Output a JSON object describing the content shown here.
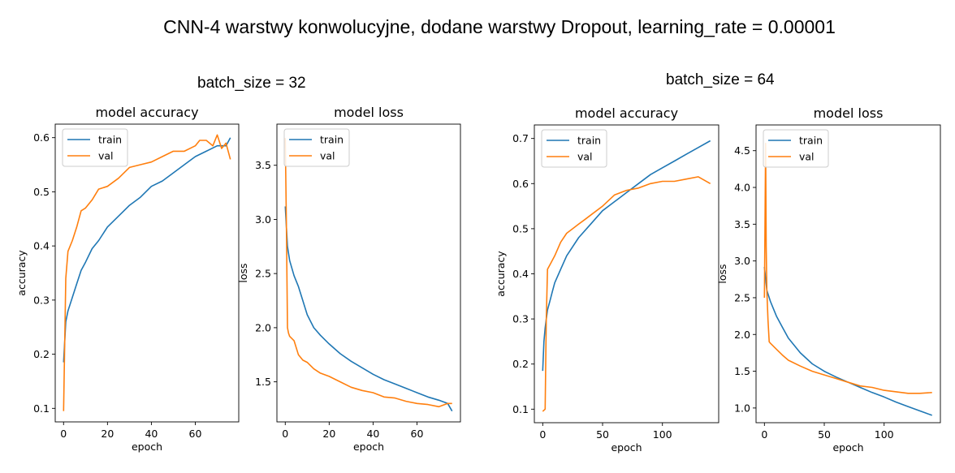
{
  "page_title": "CNN-4 warstwy konwolucyjne, dodane warstwy Dropout, learning_rate = 0.00001",
  "groups": [
    {
      "label": "batch_size = 32"
    },
    {
      "label": "batch_size = 64"
    }
  ],
  "colors": {
    "train": "#1f77b4",
    "val": "#ff7f0e"
  },
  "chart_data": [
    {
      "type": "line",
      "title": "model accuracy",
      "xlabel": "epoch",
      "ylabel": "accuracy",
      "xlim": [
        -3.8,
        79.8
      ],
      "ylim": [
        0.075,
        0.625
      ],
      "xticks": [
        0,
        20,
        40,
        60
      ],
      "yticks": [
        0.1,
        0.2,
        0.3,
        0.4,
        0.5,
        0.6
      ],
      "legend": "upper left",
      "series": [
        {
          "name": "train",
          "x": [
            0,
            1,
            2,
            4,
            6,
            8,
            10,
            13,
            16,
            20,
            25,
            30,
            35,
            40,
            45,
            50,
            55,
            60,
            65,
            70,
            74,
            76
          ],
          "values": [
            0.185,
            0.26,
            0.28,
            0.305,
            0.33,
            0.355,
            0.37,
            0.395,
            0.41,
            0.435,
            0.455,
            0.475,
            0.49,
            0.51,
            0.52,
            0.535,
            0.55,
            0.565,
            0.575,
            0.585,
            0.585,
            0.6
          ]
        },
        {
          "name": "val",
          "x": [
            0,
            1,
            2,
            4,
            6,
            8,
            10,
            13,
            16,
            20,
            25,
            30,
            35,
            40,
            45,
            50,
            55,
            60,
            62,
            65,
            68,
            70,
            72,
            74,
            76
          ],
          "values": [
            0.095,
            0.34,
            0.39,
            0.41,
            0.435,
            0.465,
            0.47,
            0.485,
            0.505,
            0.51,
            0.525,
            0.545,
            0.55,
            0.555,
            0.565,
            0.575,
            0.575,
            0.585,
            0.595,
            0.595,
            0.585,
            0.605,
            0.58,
            0.59,
            0.56
          ]
        }
      ]
    },
    {
      "type": "line",
      "title": "model loss",
      "xlabel": "epoch",
      "ylabel": "loss",
      "xlim": [
        -3.8,
        79.8
      ],
      "ylim": [
        1.13,
        3.88
      ],
      "xticks": [
        0,
        20,
        40,
        60
      ],
      "yticks": [
        1.5,
        2.0,
        2.5,
        3.0,
        3.5
      ],
      "legend": "upper left",
      "series": [
        {
          "name": "train",
          "x": [
            0,
            1,
            2,
            4,
            6,
            8,
            10,
            13,
            16,
            20,
            25,
            30,
            35,
            40,
            45,
            50,
            55,
            60,
            65,
            70,
            74,
            76
          ],
          "values": [
            3.12,
            2.75,
            2.62,
            2.48,
            2.38,
            2.25,
            2.12,
            2.0,
            1.93,
            1.85,
            1.76,
            1.69,
            1.63,
            1.57,
            1.52,
            1.48,
            1.44,
            1.4,
            1.36,
            1.33,
            1.3,
            1.23
          ]
        },
        {
          "name": "val",
          "x": [
            0,
            0.5,
            1,
            1.5,
            2,
            4,
            6,
            8,
            10,
            13,
            16,
            20,
            25,
            30,
            35,
            40,
            45,
            50,
            55,
            60,
            65,
            70,
            74,
            76
          ],
          "values": [
            3.75,
            3.0,
            2.0,
            1.95,
            1.92,
            1.88,
            1.75,
            1.7,
            1.68,
            1.62,
            1.58,
            1.55,
            1.5,
            1.45,
            1.42,
            1.4,
            1.36,
            1.35,
            1.32,
            1.3,
            1.29,
            1.27,
            1.3,
            1.3
          ]
        }
      ]
    },
    {
      "type": "line",
      "title": "model accuracy",
      "xlabel": "epoch",
      "ylabel": "accuracy",
      "xlim": [
        -7,
        147
      ],
      "ylim": [
        0.07,
        0.73
      ],
      "xticks": [
        0,
        50,
        100
      ],
      "yticks": [
        0.1,
        0.2,
        0.3,
        0.4,
        0.5,
        0.6,
        0.7
      ],
      "legend": "upper left",
      "series": [
        {
          "name": "train",
          "x": [
            0,
            1,
            2,
            4,
            6,
            8,
            10,
            15,
            20,
            25,
            30,
            40,
            50,
            60,
            70,
            80,
            90,
            100,
            110,
            120,
            130,
            140
          ],
          "values": [
            0.185,
            0.25,
            0.28,
            0.32,
            0.34,
            0.36,
            0.38,
            0.41,
            0.44,
            0.46,
            0.48,
            0.51,
            0.54,
            0.56,
            0.58,
            0.6,
            0.62,
            0.635,
            0.65,
            0.665,
            0.68,
            0.695
          ]
        },
        {
          "name": "val",
          "x": [
            0,
            2,
            3,
            4,
            6,
            10,
            15,
            20,
            25,
            30,
            35,
            40,
            50,
            60,
            70,
            80,
            90,
            100,
            110,
            120,
            130,
            140
          ],
          "values": [
            0.095,
            0.1,
            0.3,
            0.41,
            0.42,
            0.44,
            0.47,
            0.49,
            0.5,
            0.51,
            0.52,
            0.53,
            0.55,
            0.575,
            0.585,
            0.59,
            0.6,
            0.605,
            0.605,
            0.61,
            0.615,
            0.6
          ]
        }
      ]
    },
    {
      "type": "line",
      "title": "model loss",
      "xlabel": "epoch",
      "ylabel": "loss",
      "xlim": [
        -7,
        147
      ],
      "ylim": [
        0.8,
        4.85
      ],
      "xticks": [
        0,
        50,
        100
      ],
      "yticks": [
        1.0,
        1.5,
        2.0,
        2.5,
        3.0,
        3.5,
        4.0,
        4.5
      ],
      "legend": "upper left",
      "series": [
        {
          "name": "train",
          "x": [
            0,
            2,
            5,
            10,
            15,
            20,
            25,
            30,
            40,
            50,
            60,
            70,
            80,
            90,
            100,
            110,
            120,
            130,
            140
          ],
          "values": [
            2.92,
            2.6,
            2.45,
            2.25,
            2.1,
            1.95,
            1.85,
            1.75,
            1.6,
            1.5,
            1.42,
            1.35,
            1.28,
            1.21,
            1.15,
            1.08,
            1.02,
            0.96,
            0.9
          ]
        },
        {
          "name": "val",
          "x": [
            0,
            1,
            1.5,
            2,
            3,
            4,
            5,
            10,
            15,
            20,
            30,
            40,
            50,
            60,
            70,
            80,
            90,
            100,
            110,
            120,
            130,
            140
          ],
          "values": [
            2.5,
            4.6,
            3.2,
            2.6,
            2.2,
            1.9,
            1.88,
            1.8,
            1.72,
            1.65,
            1.57,
            1.5,
            1.45,
            1.4,
            1.35,
            1.3,
            1.28,
            1.24,
            1.22,
            1.2,
            1.2,
            1.21
          ]
        }
      ]
    }
  ]
}
